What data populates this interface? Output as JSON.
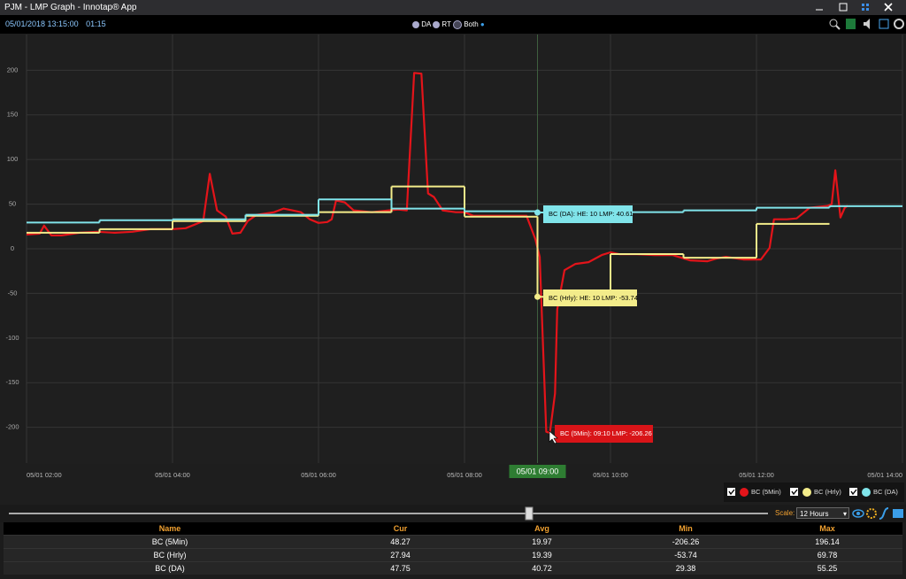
{
  "window": {
    "title": "PJM - LMP Graph - Innotap® App"
  },
  "toolbar": {
    "timestamp": "05/01/2018 13:15:00",
    "elapsed": "01:15",
    "modes": [
      "DA",
      "RT",
      "Both"
    ]
  },
  "chart_data": {
    "type": "line",
    "series": [
      {
        "name": "BC (5Min)",
        "color": "#e3141a",
        "x": [
          2.0,
          2.18,
          2.24,
          2.34,
          2.48,
          2.73,
          2.97,
          3.21,
          3.45,
          3.7,
          4.0,
          4.18,
          4.3,
          4.42,
          4.51,
          4.61,
          4.73,
          4.82,
          4.93,
          5.03,
          5.15,
          5.39,
          5.52,
          5.64,
          5.76,
          5.88,
          6.0,
          6.12,
          6.18,
          6.24,
          6.36,
          6.48,
          6.73,
          6.97,
          7.09,
          7.21,
          7.31,
          7.41,
          7.5,
          7.58,
          7.7,
          7.88,
          8.0,
          8.12,
          8.3,
          8.55,
          8.85,
          8.97,
          9.03,
          9.08,
          9.12,
          9.17,
          9.24,
          9.27,
          9.37,
          9.52,
          9.7,
          9.88,
          10.0,
          10.12,
          10.36,
          10.61,
          10.85,
          11.09,
          11.33,
          11.45,
          11.58,
          11.82,
          12.06,
          12.18,
          12.24,
          12.42,
          12.55,
          12.73,
          12.97,
          13.03,
          13.08,
          13.15,
          13.21,
          13.25
        ],
        "values": [
          16,
          17,
          26,
          15,
          15,
          18,
          19,
          18,
          19,
          22,
          22,
          23,
          27,
          31,
          84,
          43,
          36,
          17,
          18,
          31,
          38,
          41,
          45,
          43,
          41,
          33,
          29,
          30,
          33,
          54,
          52,
          43,
          41,
          43,
          44,
          43,
          197,
          196.14,
          62,
          58,
          43,
          41,
          41,
          37,
          37,
          37,
          37,
          11,
          -9,
          -118,
          -205,
          -206.26,
          -162,
          -68,
          -24,
          -17,
          -15,
          -7,
          -4,
          -6,
          -6,
          -7,
          -7,
          -13,
          -14,
          -11,
          -9,
          -12,
          -12,
          1,
          33,
          33,
          34,
          46,
          48,
          50,
          88,
          35,
          46,
          48.27
        ]
      },
      {
        "name": "BC (Hrly)",
        "color": "#f3ec8a",
        "step": "after",
        "x": [
          2,
          3,
          4,
          5,
          6,
          7,
          8,
          9,
          10,
          11,
          12,
          13
        ],
        "values": [
          18,
          22,
          31,
          37,
          41,
          69.78,
          36,
          -53.74,
          -6,
          -10,
          27.94,
          null
        ]
      },
      {
        "name": "BC (DA)",
        "color": "#80e4ea",
        "step": "after",
        "x": [
          2,
          3,
          4,
          5,
          6,
          7,
          8,
          9,
          10,
          11,
          12,
          13,
          14
        ],
        "values": [
          29.38,
          32,
          33,
          38,
          55.25,
          45,
          42,
          40.61,
          41,
          43,
          46,
          47.75,
          null
        ]
      }
    ],
    "xlim": [
      2,
      14
    ],
    "xticks": [
      {
        "value": 2,
        "label": "05/01 02:00"
      },
      {
        "value": 4,
        "label": "05/01 04:00"
      },
      {
        "value": 6,
        "label": "05/01 06:00"
      },
      {
        "value": 8,
        "label": "05/01 08:00"
      },
      {
        "value": 10,
        "label": "05/01 10:00"
      },
      {
        "value": 12,
        "label": "05/01 12:00"
      },
      {
        "value": 14,
        "label": "05/01 14:00"
      }
    ],
    "ylim": [
      -240,
      240
    ],
    "yticks": [
      -200,
      -150,
      -100,
      -50,
      0,
      50,
      100,
      150,
      200
    ],
    "grid": true,
    "cursor": {
      "x": 9,
      "label": "05/01 09:00"
    },
    "annotations": [
      "BC (DA): HE: 10 LMP: 40.61",
      "BC (Hrly): HE: 10 LMP: -53.74",
      "BC (5Min): 09:10 LMP: -206.26"
    ]
  },
  "controls": {
    "scale_label": "Scale:",
    "scale_value": "12 Hours"
  },
  "table": {
    "columns": [
      "Name",
      "Cur",
      "Avg",
      "Min",
      "Max"
    ],
    "rows": [
      [
        "BC (5Min)",
        48.27,
        19.97,
        -206.26,
        196.14
      ],
      [
        "BC (Hrly)",
        27.94,
        19.39,
        -53.74,
        69.78
      ],
      [
        "BC (DA)",
        47.75,
        40.72,
        29.38,
        55.25
      ]
    ]
  }
}
